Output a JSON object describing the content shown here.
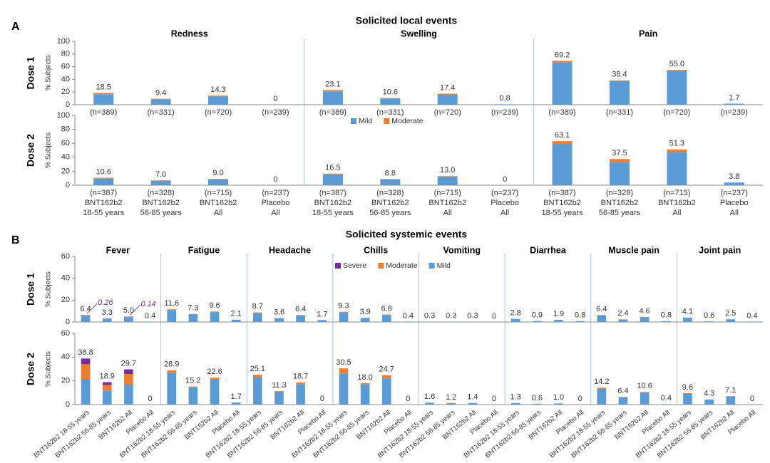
{
  "chart_data": [
    {
      "type": "stacked-bar",
      "panel": "A",
      "title": "Solicited local events",
      "ylabel": "% Subjects",
      "ylim": [
        0,
        100
      ],
      "yticks": [
        0,
        20,
        40,
        60,
        80,
        100
      ],
      "series": [
        {
          "name": "Mild",
          "color": "#5b9bd5"
        },
        {
          "name": "Moderate",
          "color": "#ed7d31"
        }
      ],
      "groups": [
        [
          "BNT162b2",
          "18-55 years"
        ],
        [
          "BNT162b2",
          "56-85 years"
        ],
        [
          "BNT162b2",
          "All"
        ],
        [
          "Placebo",
          "All"
        ]
      ],
      "facets": [
        "Redness",
        "Swelling",
        "Pain"
      ],
      "rows": [
        {
          "label": "Dose 1",
          "cells": [
            {
              "n": [
                "(n=389)",
                "(n=331)",
                "(n=720)",
                "(n=239)"
              ],
              "values": [
                [
                  16.5,
                  8.5,
                  13.0,
                  0
                ],
                [
                  2.0,
                  0.9,
                  1.3,
                  0
                ]
              ],
              "totals": [
                18.5,
                9.4,
                14.3,
                0
              ],
              "total_labels": [
                "18.5",
                "9.4",
                "14.3",
                "0"
              ]
            },
            {
              "n": [
                "(n=389)",
                "(n=331)",
                "(n=720)",
                "(n=239)"
              ],
              "values": [
                [
                  21.0,
                  9.8,
                  15.7,
                  0.8
                ],
                [
                  2.1,
                  0.8,
                  1.7,
                  0
                ]
              ],
              "totals": [
                23.1,
                10.6,
                17.4,
                0.8
              ],
              "total_labels": [
                "23.1",
                "10.6",
                "17.4",
                "0.8"
              ]
            },
            {
              "n": [
                "(n=389)",
                "(n=331)",
                "(n=720)",
                "(n=239)"
              ],
              "values": [
                [
                  66.5,
                  37.3,
                  53.2,
                  1.7
                ],
                [
                  2.7,
                  1.1,
                  1.8,
                  0
                ]
              ],
              "totals": [
                69.2,
                38.4,
                55.0,
                1.7
              ],
              "total_labels": [
                "69.2",
                "38.4",
                "55.0",
                "1.7"
              ]
            }
          ]
        },
        {
          "label": "Dose 2",
          "cells": [
            {
              "n": [
                "(n=387)",
                "(n=328)",
                "(n=715)",
                "(n=237)"
              ],
              "values": [
                [
                  9.5,
                  6.4,
                  8.2,
                  0
                ],
                [
                  1.1,
                  0.6,
                  0.8,
                  0
                ]
              ],
              "totals": [
                10.6,
                7.0,
                9.0,
                0
              ],
              "total_labels": [
                "10.6",
                "7.0",
                "9.0",
                "0"
              ]
            },
            {
              "n": [
                "(n=387)",
                "(n=328)",
                "(n=715)",
                "(n=237)"
              ],
              "values": [
                [
                  15.2,
                  8.2,
                  12.1,
                  0
                ],
                [
                  1.3,
                  0.6,
                  0.9,
                  0
                ]
              ],
              "totals": [
                16.5,
                8.8,
                13.0,
                0
              ],
              "total_labels": [
                "16.5",
                "8.8",
                "13.0",
                "0"
              ]
            },
            {
              "n": [
                "(n=387)",
                "(n=328)",
                "(n=715)",
                "(n=237)"
              ],
              "values": [
                [
                  58.8,
                  32.5,
                  46.8,
                  3.8
                ],
                [
                  4.3,
                  5.0,
                  4.5,
                  0
                ]
              ],
              "totals": [
                63.1,
                37.5,
                51.3,
                3.8
              ],
              "total_labels": [
                "63.1",
                "37.5",
                "51.3",
                "3.8"
              ]
            }
          ]
        }
      ]
    },
    {
      "type": "stacked-bar",
      "panel": "B",
      "title": "Solicited systemic events",
      "ylabel": "% Subjects",
      "ylim": [
        0,
        60
      ],
      "yticks": [
        0,
        20,
        40,
        60
      ],
      "series": [
        {
          "name": "Mild",
          "color": "#5b9bd5"
        },
        {
          "name": "Moderate",
          "color": "#ed7d31"
        },
        {
          "name": "Severe",
          "color": "#7030a0"
        }
      ],
      "groups": [
        "BNT162b2 18-55 years",
        "BNT162b2 56-85 years",
        "BNT162b2 All",
        "Placebo All"
      ],
      "facets": [
        "Fever",
        "Fatigue",
        "Headache",
        "Chills",
        "Vomiting",
        "Diarrhea",
        "Muscle pain",
        "Joint pain"
      ],
      "rows": [
        {
          "label": "Dose 1",
          "cells": [
            {
              "values": [
                [
                  5.4,
                  3.0,
                  4.4,
                  0.4
                ],
                [
                  0.74,
                  0.3,
                  0.46,
                  0
                ],
                [
                  0.26,
                  0,
                  0.14,
                  0
                ]
              ],
              "totals": [
                6.4,
                3.3,
                5.0,
                0.4
              ],
              "total_labels": [
                "6.4",
                "3.3",
                "5.0",
                "0.4"
              ],
              "annotate_severe": true
            },
            {
              "values": [
                [
                  11.0,
                  6.8,
                  9.0,
                  2.0
                ],
                [
                  0.6,
                  0.5,
                  0.6,
                  0.1
                ],
                [
                  0,
                  0,
                  0,
                  0
                ]
              ],
              "totals": [
                11.6,
                7.3,
                9.6,
                2.1
              ],
              "total_labels": [
                "11.6",
                "7.3",
                "9.6",
                "2.1"
              ]
            },
            {
              "values": [
                [
                  7.9,
                  3.4,
                  5.9,
                  1.7
                ],
                [
                  0.8,
                  0.2,
                  0.5,
                  0
                ],
                [
                  0,
                  0,
                  0,
                  0
                ]
              ],
              "totals": [
                8.7,
                3.6,
                6.4,
                1.7
              ],
              "total_labels": [
                "8.7",
                "3.6",
                "6.4",
                "1.7"
              ]
            },
            {
              "values": [
                [
                  8.7,
                  3.7,
                  6.4,
                  0.4
                ],
                [
                  0.6,
                  0.2,
                  0.4,
                  0
                ],
                [
                  0,
                  0,
                  0,
                  0
                ]
              ],
              "totals": [
                9.3,
                3.9,
                6.8,
                0.4
              ],
              "total_labels": [
                "9.3",
                "3.9",
                "6.8",
                "0.4"
              ]
            },
            {
              "values": [
                [
                  0.3,
                  0.3,
                  0.3,
                  0
                ],
                [
                  0,
                  0,
                  0,
                  0
                ],
                [
                  0,
                  0,
                  0,
                  0
                ]
              ],
              "totals": [
                0.3,
                0.3,
                0.3,
                0
              ],
              "total_labels": [
                "0.3",
                "0.3",
                "0.3",
                "0"
              ]
            },
            {
              "values": [
                [
                  2.8,
                  0.9,
                  1.9,
                  0.8
                ],
                [
                  0,
                  0,
                  0,
                  0
                ],
                [
                  0,
                  0,
                  0,
                  0
                ]
              ],
              "totals": [
                2.8,
                0.9,
                1.9,
                0.8
              ],
              "total_labels": [
                "2.8",
                "0.9",
                "1.9",
                "0.8"
              ]
            },
            {
              "values": [
                [
                  6.0,
                  2.2,
                  4.2,
                  0.8
                ],
                [
                  0.4,
                  0.2,
                  0.4,
                  0
                ],
                [
                  0,
                  0,
                  0,
                  0
                ]
              ],
              "totals": [
                6.4,
                2.4,
                4.6,
                0.8
              ],
              "total_labels": [
                "6.4",
                "2.4",
                "4.6",
                "0.8"
              ]
            },
            {
              "values": [
                [
                  3.9,
                  0.6,
                  2.4,
                  0.4
                ],
                [
                  0.2,
                  0,
                  0.1,
                  0
                ],
                [
                  0,
                  0,
                  0,
                  0
                ]
              ],
              "totals": [
                4.1,
                0.6,
                2.5,
                0.4
              ],
              "total_labels": [
                "4.1",
                "0.6",
                "2.5",
                "0.4"
              ]
            }
          ]
        },
        {
          "label": "Dose 2",
          "cells": [
            {
              "values": [
                [
                  21.0,
                  11.5,
                  16.5,
                  0
                ],
                [
                  13.0,
                  4.9,
                  9.3,
                  0
                ],
                [
                  4.8,
                  2.5,
                  3.9,
                  0
                ]
              ],
              "totals": [
                38.8,
                18.9,
                29.7,
                0
              ],
              "total_labels": [
                "38.8",
                "18.9",
                "29.7",
                "0"
              ]
            },
            {
              "values": [
                [
                  26.5,
                  14.5,
                  21.0,
                  1.7
                ],
                [
                  2.4,
                  0.7,
                  1.6,
                  0
                ],
                [
                  0,
                  0,
                  0,
                  0
                ]
              ],
              "totals": [
                28.9,
                15.2,
                22.6,
                1.7
              ],
              "total_labels": [
                "28.9",
                "15.2",
                "22.6",
                "1.7"
              ]
            },
            {
              "values": [
                [
                  22.8,
                  10.5,
                  17.0,
                  0
                ],
                [
                  2.3,
                  0.8,
                  1.7,
                  0
                ],
                [
                  0,
                  0,
                  0,
                  0
                ]
              ],
              "totals": [
                25.1,
                11.3,
                18.7,
                0
              ],
              "total_labels": [
                "25.1",
                "11.3",
                "18.7",
                "0"
              ]
            },
            {
              "values": [
                [
                  26.0,
                  17.0,
                  22.0,
                  0
                ],
                [
                  4.5,
                  1.0,
                  2.7,
                  0
                ],
                [
                  0,
                  0,
                  0,
                  0
                ]
              ],
              "totals": [
                30.5,
                18.0,
                24.7,
                0
              ],
              "total_labels": [
                "30.5",
                "18.0",
                "24.7",
                "0"
              ]
            },
            {
              "values": [
                [
                  1.6,
                  0.9,
                  1.3,
                  0
                ],
                [
                  0,
                  0.3,
                  0.1,
                  0
                ],
                [
                  0,
                  0,
                  0,
                  0
                ]
              ],
              "totals": [
                1.6,
                1.2,
                1.4,
                0
              ],
              "total_labels": [
                "1.6",
                "1.2",
                "1.4",
                "0"
              ]
            },
            {
              "values": [
                [
                  1.3,
                  0.6,
                  1.0,
                  0
                ],
                [
                  0,
                  0,
                  0,
                  0
                ],
                [
                  0,
                  0,
                  0,
                  0
                ]
              ],
              "totals": [
                1.3,
                0.6,
                1.0,
                0
              ],
              "total_labels": [
                "1.3",
                "0.6",
                "1.0",
                "0"
              ]
            },
            {
              "values": [
                [
                  13.2,
                  6.0,
                  9.9,
                  0.4
                ],
                [
                  1.0,
                  0.4,
                  0.7,
                  0
                ],
                [
                  0,
                  0,
                  0,
                  0
                ]
              ],
              "totals": [
                14.2,
                6.4,
                10.6,
                0.4
              ],
              "total_labels": [
                "14.2",
                "6.4",
                "10.6",
                "0.4"
              ]
            },
            {
              "values": [
                [
                  9.0,
                  4.3,
                  6.8,
                  0
                ],
                [
                  0.6,
                  0,
                  0.3,
                  0
                ],
                [
                  0,
                  0,
                  0,
                  0
                ]
              ],
              "totals": [
                9.6,
                4.3,
                7.1,
                0
              ],
              "total_labels": [
                "9.6",
                "4.3",
                "7.1",
                "0"
              ]
            }
          ]
        }
      ]
    }
  ]
}
